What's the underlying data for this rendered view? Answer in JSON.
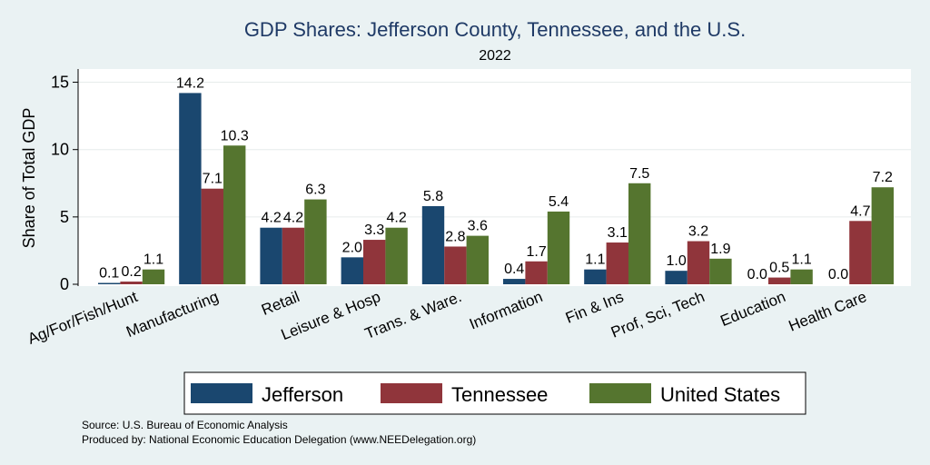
{
  "chart_data": {
    "type": "bar",
    "title": "GDP Shares: Jefferson County, Tennessee, and the U.S.",
    "subtitle": "2022",
    "ylabel": "Share of Total GDP",
    "xlabel": "",
    "ylim": [
      0,
      16
    ],
    "yticks": [
      0,
      5,
      10,
      15
    ],
    "grid": true,
    "legend_position": "bottom",
    "categories": [
      "Ag/For/Fish/Hunt",
      "Manufacturing",
      "Retail",
      "Leisure & Hosp",
      "Trans. & Ware.",
      "Information",
      "Fin & Ins",
      "Prof, Sci, Tech",
      "Education",
      "Health Care"
    ],
    "series": [
      {
        "name": "Jefferson",
        "color": "#1a476f",
        "values": [
          0.1,
          14.2,
          4.2,
          2.0,
          5.8,
          0.4,
          1.1,
          1.0,
          0.0,
          0.0
        ],
        "labels": [
          "0.1",
          "14.2",
          "4.2",
          "2.0",
          "5.8",
          "0.4",
          "1.1",
          "1.0",
          "0.0",
          "0.0"
        ]
      },
      {
        "name": "Tennessee",
        "color": "#90353b",
        "values": [
          0.2,
          7.1,
          4.2,
          3.3,
          2.8,
          1.7,
          3.1,
          3.2,
          0.5,
          4.7
        ],
        "labels": [
          "0.2",
          "7.1",
          "4.2",
          "3.3",
          "2.8",
          "1.7",
          "3.1",
          "3.2",
          "0.5",
          "4.7"
        ]
      },
      {
        "name": "United States",
        "color": "#55752f",
        "values": [
          1.1,
          10.3,
          6.3,
          4.2,
          3.6,
          5.4,
          7.5,
          1.9,
          1.1,
          7.2
        ],
        "labels": [
          "1.1",
          "10.3",
          "6.3",
          "4.2",
          "3.6",
          "5.4",
          "7.5",
          "1.9",
          "1.1",
          "7.2"
        ]
      }
    ]
  },
  "notes": {
    "source": "Source: U.S. Bureau of Economic Analysis",
    "produced": "Produced by: National Economic Education Delegation (www.NEEDelegation.org)"
  }
}
